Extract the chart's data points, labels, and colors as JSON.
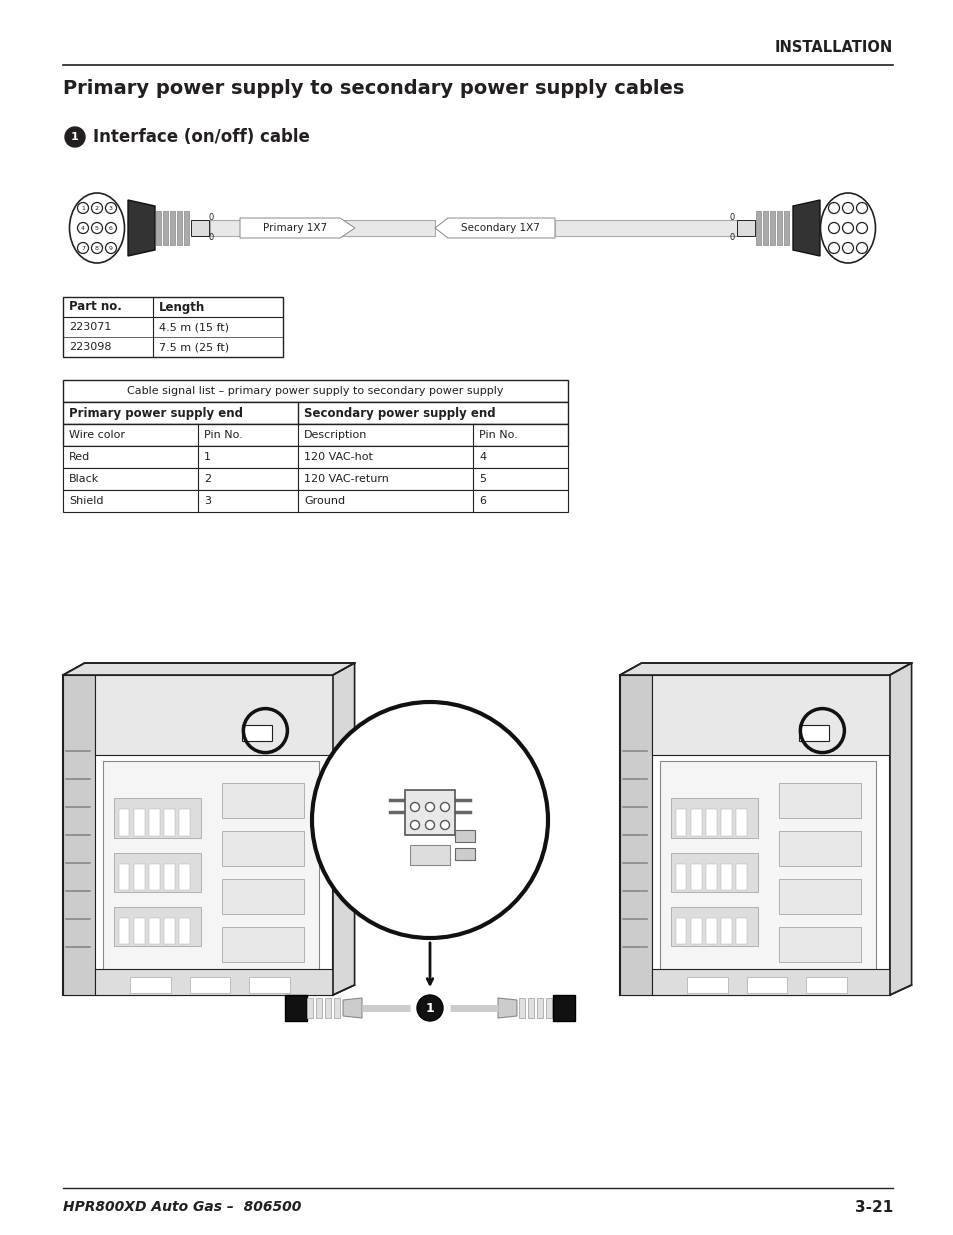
{
  "header_text": "INSTALLATION",
  "title": "Primary power supply to secondary power supply cables",
  "subtitle_num": "1",
  "subtitle": "Interface (on/off) cable",
  "footer_left": "HPR800XD Auto Gas –  806500",
  "footer_right": "3-21",
  "parts_table": {
    "headers": [
      "Part no.",
      "Length"
    ],
    "rows": [
      [
        "223071",
        "4.5 m (15 ft)"
      ],
      [
        "223098",
        "7.5 m (25 ft)"
      ]
    ]
  },
  "signal_table": {
    "title": "Cable signal list – primary power supply to secondary power supply",
    "col_headers_left": "Primary power supply end",
    "col_headers_right": "Secondary power supply end",
    "sub_headers": [
      "Wire color",
      "Pin No.",
      "Description",
      "Pin No."
    ],
    "rows": [
      [
        "Red",
        "1",
        "120 VAC-hot",
        "4"
      ],
      [
        "Black",
        "2",
        "120 VAC-return",
        "5"
      ],
      [
        "Shield",
        "3",
        "Ground",
        "6"
      ]
    ]
  },
  "bg_color": "#ffffff",
  "text_color": "#231f20",
  "table_border_color": "#231f20"
}
